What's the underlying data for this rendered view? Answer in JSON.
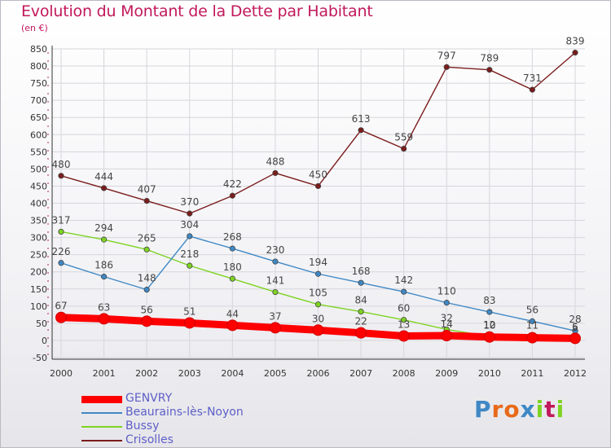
{
  "chart_data": {
    "type": "line",
    "title": "Evolution du Montant de la Dette par Habitant",
    "subtitle": "(en €)",
    "x": [
      "2000",
      "2001",
      "2002",
      "2003",
      "2004",
      "2005",
      "2006",
      "2007",
      "2008",
      "2009",
      "2010",
      "2011",
      "2012"
    ],
    "ylim": [
      -50,
      850
    ],
    "yticks": [
      -50,
      0,
      50,
      100,
      150,
      200,
      250,
      300,
      350,
      400,
      450,
      500,
      550,
      600,
      650,
      700,
      750,
      800,
      850
    ],
    "grid": true,
    "legend_position": "bottom-left",
    "series": [
      {
        "name": "GENVRY",
        "color": "#ff0000",
        "values": [
          67,
          63,
          56,
          51,
          44,
          37,
          30,
          22,
          13,
          14,
          10,
          8,
          6
        ],
        "labels": [
          "67",
          "63",
          "56",
          "51",
          "44",
          "37",
          "30",
          "22",
          "13",
          "14",
          "10",
          "",
          "6"
        ]
      },
      {
        "name": "Beaurains-lès-Noyon",
        "color": "#3f88c5",
        "values": [
          226,
          186,
          148,
          304,
          268,
          230,
          194,
          168,
          142,
          110,
          83,
          56,
          28
        ],
        "labels": [
          "226",
          "186",
          "148",
          "304",
          "268",
          "230",
          "194",
          "168",
          "142",
          "110",
          "83",
          "56",
          "28"
        ]
      },
      {
        "name": "Bussy",
        "color": "#7ed321",
        "values": [
          317,
          294,
          265,
          218,
          180,
          141,
          105,
          84,
          60,
          32,
          12,
          11,
          5
        ],
        "labels": [
          "317",
          "294",
          "265",
          "218",
          "180",
          "141",
          "105",
          "84",
          "60",
          "32",
          "12",
          "11",
          "5"
        ]
      },
      {
        "name": "Crisolles",
        "color": "#7b1c1c",
        "values": [
          480,
          444,
          407,
          370,
          422,
          488,
          450,
          613,
          559,
          797,
          789,
          731,
          839
        ],
        "labels": [
          "480",
          "444",
          "407",
          "370",
          "422",
          "488",
          "450",
          "613",
          "559",
          "797",
          "789",
          "731",
          "839"
        ]
      }
    ]
  },
  "logo": {
    "text": "Proxiti",
    "letters": [
      "P",
      "r",
      "o",
      "x",
      "i",
      "t",
      "i"
    ],
    "colors": [
      "#3f88c5",
      "#e86a1a",
      "#e86a1a",
      "#3f88c5",
      "#7ed321",
      "#c2185b",
      "#7ed321"
    ]
  }
}
